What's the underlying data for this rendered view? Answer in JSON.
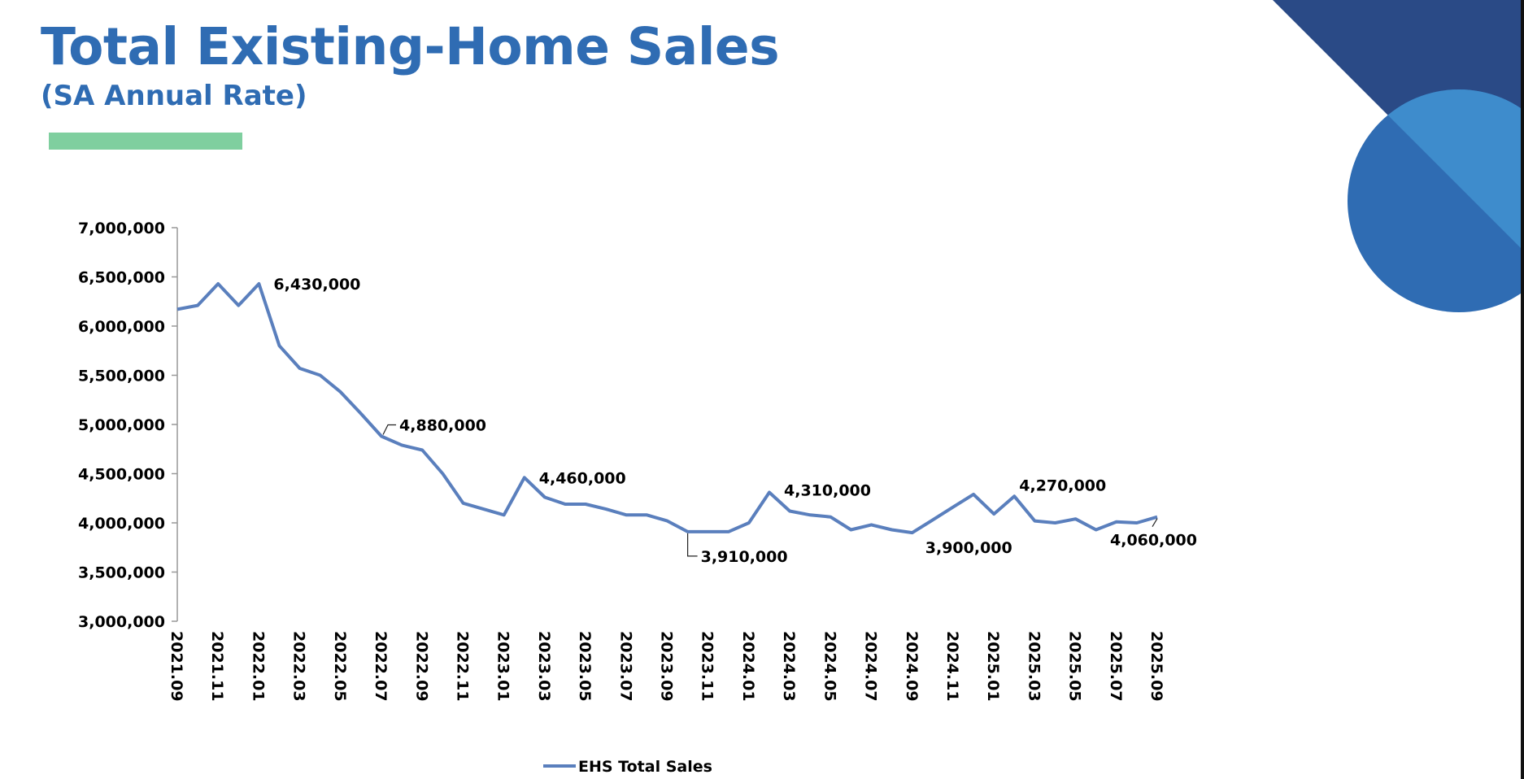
{
  "header": {
    "title": "Total Existing-Home Sales",
    "subtitle": "(SA Annual Rate)"
  },
  "colors": {
    "title": "#2f6cb3",
    "accent_bar": "#7fcf9f",
    "series_line": "#5a7fbd",
    "deco_dark": "#2a4a86",
    "deco_mid": "#2f6cb3",
    "deco_light": "#3e8ccc"
  },
  "chart_data": {
    "type": "line",
    "ylim": [
      3000000,
      7000000
    ],
    "y_ticks": [
      3000000,
      3500000,
      4000000,
      4500000,
      5000000,
      5500000,
      6000000,
      6500000,
      7000000
    ],
    "y_tick_labels": [
      "3,000,000",
      "3,500,000",
      "4,000,000",
      "4,500,000",
      "5,000,000",
      "5,500,000",
      "6,000,000",
      "6,500,000",
      "7,000,000"
    ],
    "x_tick_labels": [
      "2021.09",
      "2021.11",
      "2022.01",
      "2022.03",
      "2022.05",
      "2022.07",
      "2022.09",
      "2022.11",
      "2023.01",
      "2023.03",
      "2023.05",
      "2023.07",
      "2023.09",
      "2023.11",
      "2024.01",
      "2024.03",
      "2024.05",
      "2024.07",
      "2024.09",
      "2024.11",
      "2025.01",
      "2025.03",
      "2025.05",
      "2025.07",
      "2025.09"
    ],
    "x": [
      "2021.09",
      "2021.10",
      "2021.11",
      "2021.12",
      "2022.01",
      "2022.02",
      "2022.03",
      "2022.04",
      "2022.05",
      "2022.06",
      "2022.07",
      "2022.08",
      "2022.09",
      "2022.10",
      "2022.11",
      "2022.12",
      "2023.01",
      "2023.02",
      "2023.03",
      "2023.04",
      "2023.05",
      "2023.06",
      "2023.07",
      "2023.08",
      "2023.09",
      "2023.10",
      "2023.11",
      "2023.12",
      "2024.01",
      "2024.02",
      "2024.03",
      "2024.04",
      "2024.05",
      "2024.06",
      "2024.07",
      "2024.08",
      "2024.09",
      "2024.10",
      "2024.11",
      "2024.12",
      "2025.01",
      "2025.02",
      "2025.03",
      "2025.04",
      "2025.05",
      "2025.06",
      "2025.07",
      "2025.08",
      "2025.09"
    ],
    "series": [
      {
        "name": "EHS Total Sales",
        "values": [
          6170000,
          6210000,
          6430000,
          6210000,
          6430000,
          5800000,
          5570000,
          5500000,
          5330000,
          5110000,
          4880000,
          4790000,
          4740000,
          4500000,
          4200000,
          4140000,
          4080000,
          4460000,
          4260000,
          4190000,
          4190000,
          4140000,
          4080000,
          4080000,
          4020000,
          3910000,
          3910000,
          3910000,
          4000000,
          4310000,
          4120000,
          4080000,
          4060000,
          3930000,
          3980000,
          3930000,
          3900000,
          4030000,
          4160000,
          4290000,
          4090000,
          4270000,
          4020000,
          4000000,
          4040000,
          3930000,
          4010000,
          4000000,
          4060000
        ]
      }
    ],
    "annotations": [
      {
        "index": 4,
        "label": "6,430,000",
        "dx": 18,
        "dy": 0
      },
      {
        "index": 10,
        "label": "4,880,000",
        "dx": 22,
        "dy": -14,
        "leader": true
      },
      {
        "index": 17,
        "label": "4,460,000",
        "dx": 18,
        "dy": 0
      },
      {
        "index": 25,
        "label": "3,910,000",
        "dx": 16,
        "dy": 30,
        "leader": true
      },
      {
        "index": 29,
        "label": "4,310,000",
        "dx": 18,
        "dy": -3
      },
      {
        "index": 36,
        "label": "3,900,000",
        "dx": 16,
        "dy": 18
      },
      {
        "index": 41,
        "label": "4,270,000",
        "dx": 6,
        "dy": -14
      },
      {
        "index": 48,
        "label": "4,060,000",
        "dx": -58,
        "dy": 28,
        "leader": true
      }
    ],
    "legend": {
      "position": "bottom-center"
    },
    "grid": false
  }
}
